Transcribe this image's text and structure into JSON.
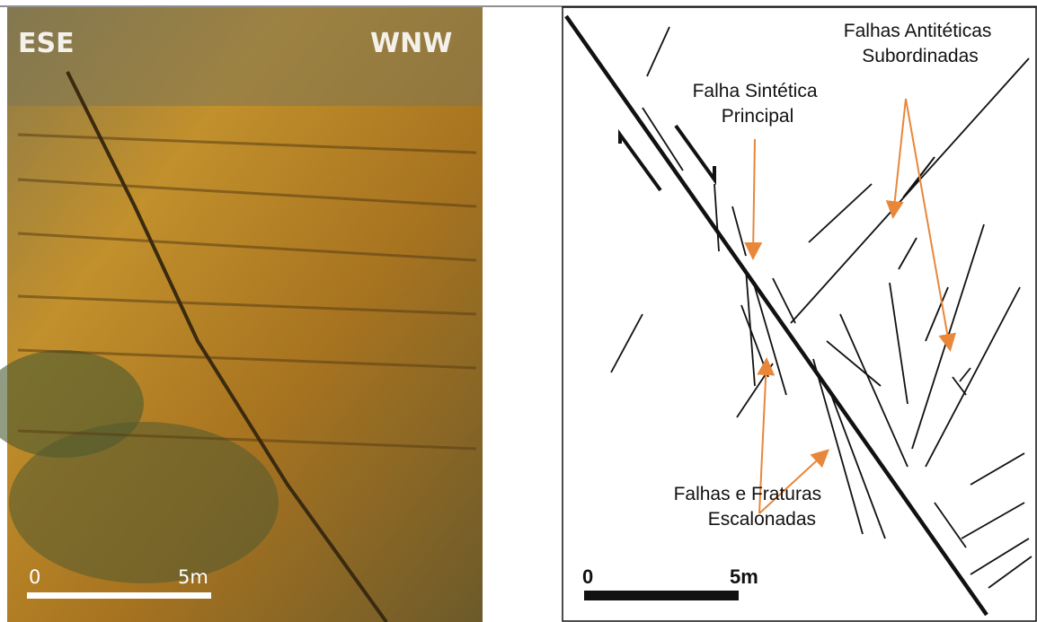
{
  "photo": {
    "left_label": "ESE",
    "right_label": "WNW",
    "scale_start": "0",
    "scale_end": "5m"
  },
  "sketch": {
    "antithetic_label": [
      "Falhas Antitéticas",
      "Subordinadas"
    ],
    "synthetic_label": [
      "Falha Sintética",
      "Principal"
    ],
    "echelon_label": [
      "Falhas e Fraturas",
      "Escalonadas"
    ],
    "scale_start": "0",
    "scale_end": "5m"
  }
}
